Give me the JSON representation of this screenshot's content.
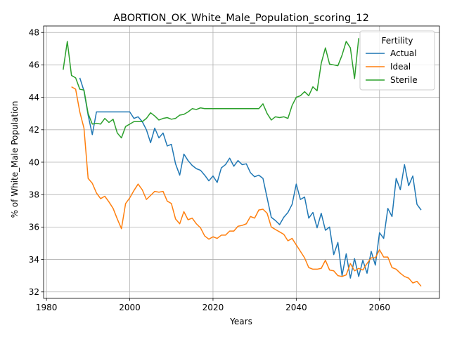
{
  "chart_data": {
    "type": "line",
    "title": "ABORTION_OK_White_Male_Population_scoring_12",
    "xlabel": "Years",
    "ylabel": "% of White_Male Population",
    "xlim": [
      1979.3,
      2074.4
    ],
    "ylim": [
      31.6,
      48.4
    ],
    "xticks": [
      1980,
      2000,
      2020,
      2040,
      2060
    ],
    "yticks": [
      32,
      34,
      36,
      38,
      40,
      42,
      44,
      46,
      48
    ],
    "grid": true,
    "legend": {
      "title": "Fertility",
      "position": "top-right"
    },
    "series": [
      {
        "name": "Actual",
        "color": "#1f77b4",
        "x": [
          1988,
          1989,
          1990,
          1991,
          1992,
          1993,
          1994,
          1995,
          1996,
          1997,
          1998,
          1999,
          2000,
          2001,
          2002,
          2003,
          2004,
          2005,
          2006,
          2007,
          2008,
          2009,
          2010,
          2011,
          2012,
          2013,
          2014,
          2015,
          2016,
          2017,
          2018,
          2019,
          2020,
          2021,
          2022,
          2023,
          2024,
          2025,
          2026,
          2027,
          2028,
          2029,
          2030,
          2031,
          2032,
          2033,
          2034,
          2035,
          2036,
          2037,
          2038,
          2039,
          2040,
          2041,
          2042,
          2043,
          2044,
          2045,
          2046,
          2047,
          2048,
          2049,
          2050,
          2051,
          2052,
          2053,
          2054,
          2055,
          2056,
          2057,
          2058,
          2059,
          2060,
          2061,
          2062,
          2063,
          2064,
          2065,
          2066,
          2067,
          2068,
          2069,
          2070
        ],
        "y": [
          45.2,
          44.4,
          42.9,
          41.7,
          43.1,
          43.1,
          43.1,
          43.1,
          43.1,
          43.1,
          43.1,
          43.1,
          43.1,
          42.7,
          42.8,
          42.5,
          42.0,
          41.2,
          42.1,
          41.5,
          41.8,
          41.0,
          41.1,
          39.9,
          39.2,
          40.5,
          40.1,
          39.8,
          39.6,
          39.5,
          39.2,
          38.85,
          39.15,
          38.75,
          39.65,
          39.85,
          40.25,
          39.75,
          40.1,
          39.85,
          39.9,
          39.35,
          39.1,
          39.2,
          39.0,
          37.8,
          36.6,
          36.4,
          36.15,
          36.6,
          36.9,
          37.4,
          38.65,
          37.7,
          37.85,
          36.55,
          36.9,
          35.95,
          36.85,
          35.8,
          36.0,
          34.3,
          35.05,
          33.0,
          34.35,
          32.85,
          34.05,
          32.95,
          33.95,
          33.15,
          34.5,
          33.65,
          35.65,
          35.3,
          37.15,
          36.65,
          39.0,
          38.3,
          39.85,
          38.55,
          39.15,
          37.4,
          37.05
        ]
      },
      {
        "name": "Ideal",
        "color": "#ff7f0e",
        "x": [
          1986,
          1987,
          1988,
          1989,
          1990,
          1991,
          1992,
          1993,
          1994,
          1995,
          1996,
          1997,
          1998,
          1999,
          2000,
          2001,
          2002,
          2003,
          2004,
          2005,
          2006,
          2007,
          2008,
          2009,
          2010,
          2011,
          2012,
          2013,
          2014,
          2015,
          2016,
          2017,
          2018,
          2019,
          2020,
          2021,
          2022,
          2023,
          2024,
          2025,
          2026,
          2027,
          2028,
          2029,
          2030,
          2031,
          2032,
          2033,
          2034,
          2035,
          2036,
          2037,
          2038,
          2039,
          2040,
          2041,
          2042,
          2043,
          2044,
          2045,
          2046,
          2047,
          2048,
          2049,
          2050,
          2051,
          2052,
          2053,
          2054,
          2055,
          2056,
          2057,
          2058,
          2059,
          2060,
          2061,
          2062,
          2063,
          2064,
          2065,
          2066,
          2067,
          2068,
          2069,
          2070
        ],
        "y": [
          44.65,
          44.5,
          43.1,
          42.1,
          39.0,
          38.7,
          38.1,
          37.75,
          37.9,
          37.55,
          37.15,
          36.5,
          35.9,
          37.45,
          37.8,
          38.25,
          38.65,
          38.3,
          37.7,
          37.95,
          38.2,
          38.15,
          38.2,
          37.6,
          37.45,
          36.5,
          36.2,
          36.95,
          36.45,
          36.55,
          36.2,
          35.95,
          35.45,
          35.25,
          35.4,
          35.3,
          35.5,
          35.5,
          35.75,
          35.75,
          36.05,
          36.1,
          36.2,
          36.65,
          36.55,
          37.05,
          37.1,
          36.85,
          36.0,
          35.85,
          35.7,
          35.55,
          35.15,
          35.3,
          34.9,
          34.5,
          34.1,
          33.5,
          33.4,
          33.4,
          33.45,
          33.95,
          33.35,
          33.3,
          33.0,
          32.95,
          33.05,
          33.75,
          33.3,
          33.45,
          33.35,
          33.75,
          34.1,
          34.1,
          34.6,
          34.15,
          34.15,
          33.5,
          33.4,
          33.15,
          32.95,
          32.85,
          32.55,
          32.65,
          32.35
        ]
      },
      {
        "name": "Sterile",
        "color": "#2ca02c",
        "x": [
          1984,
          1985,
          1986,
          1987,
          1988,
          1989,
          1990,
          1991,
          1992,
          1993,
          1994,
          1995,
          1996,
          1997,
          1998,
          1999,
          2000,
          2001,
          2002,
          2003,
          2004,
          2005,
          2006,
          2007,
          2008,
          2009,
          2010,
          2011,
          2012,
          2013,
          2014,
          2015,
          2016,
          2017,
          2018,
          2019,
          2020,
          2021,
          2022,
          2023,
          2024,
          2025,
          2026,
          2027,
          2028,
          2029,
          2030,
          2031,
          2032,
          2033,
          2034,
          2035,
          2036,
          2037,
          2038,
          2039,
          2040,
          2041,
          2042,
          2043,
          2044,
          2045,
          2046,
          2047,
          2048,
          2049,
          2050,
          2051,
          2052,
          2053,
          2054,
          2055
        ],
        "y": [
          45.7,
          47.45,
          45.35,
          45.2,
          44.5,
          44.45,
          43.0,
          42.35,
          42.4,
          42.35,
          42.7,
          42.45,
          42.65,
          41.8,
          41.5,
          42.2,
          42.35,
          42.5,
          42.5,
          42.5,
          42.7,
          43.05,
          42.85,
          42.6,
          42.7,
          42.75,
          42.65,
          42.7,
          42.9,
          42.95,
          43.1,
          43.3,
          43.25,
          43.35,
          43.3,
          43.3,
          43.3,
          43.3,
          43.3,
          43.3,
          43.3,
          43.3,
          43.3,
          43.3,
          43.3,
          43.3,
          43.3,
          43.3,
          43.6,
          43.0,
          42.6,
          42.8,
          42.75,
          42.8,
          42.7,
          43.5,
          44.0,
          44.1,
          44.35,
          44.1,
          44.65,
          44.4,
          46.1,
          47.05,
          46.05,
          46.0,
          45.95,
          46.6,
          47.45,
          47.05,
          45.15,
          47.65
        ]
      }
    ]
  }
}
